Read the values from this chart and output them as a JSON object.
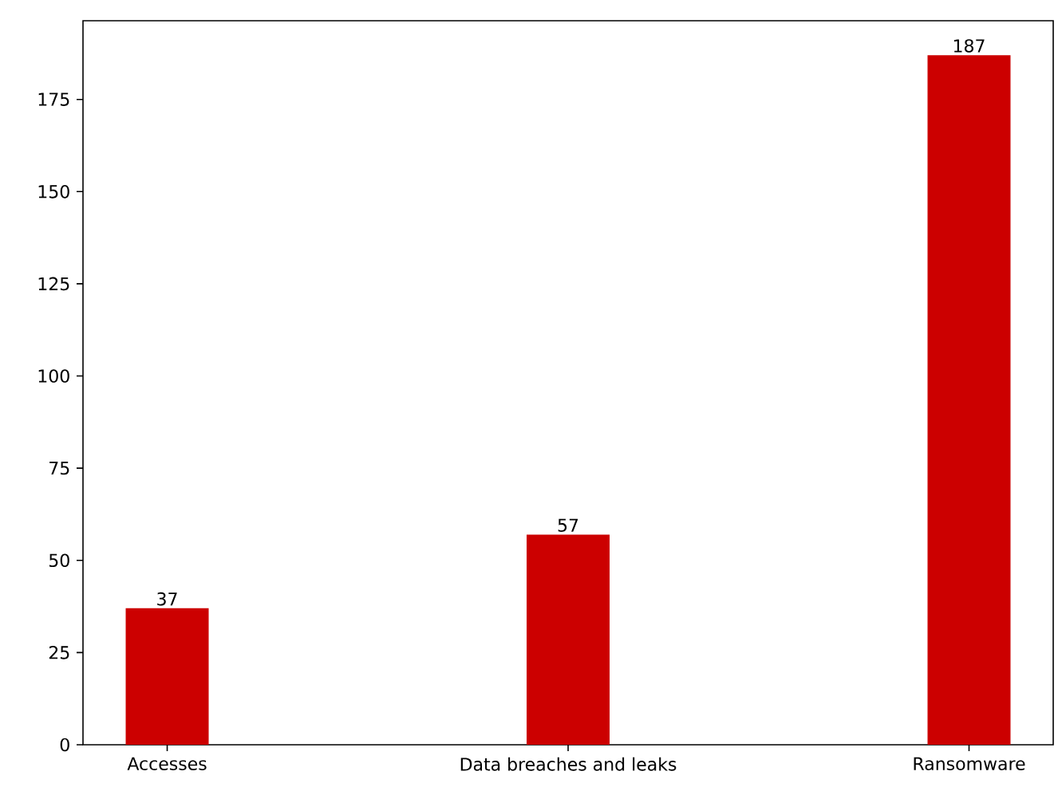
{
  "chart_data": {
    "type": "bar",
    "categories": [
      "Accesses",
      "Data breaches and leaks",
      "Ransomware"
    ],
    "values": [
      37,
      57,
      187
    ],
    "color": "#cc0000",
    "ylim": [
      0,
      196.35
    ],
    "yticks": [
      0,
      25,
      50,
      75,
      100,
      125,
      150,
      175
    ],
    "data_labels": true
  }
}
